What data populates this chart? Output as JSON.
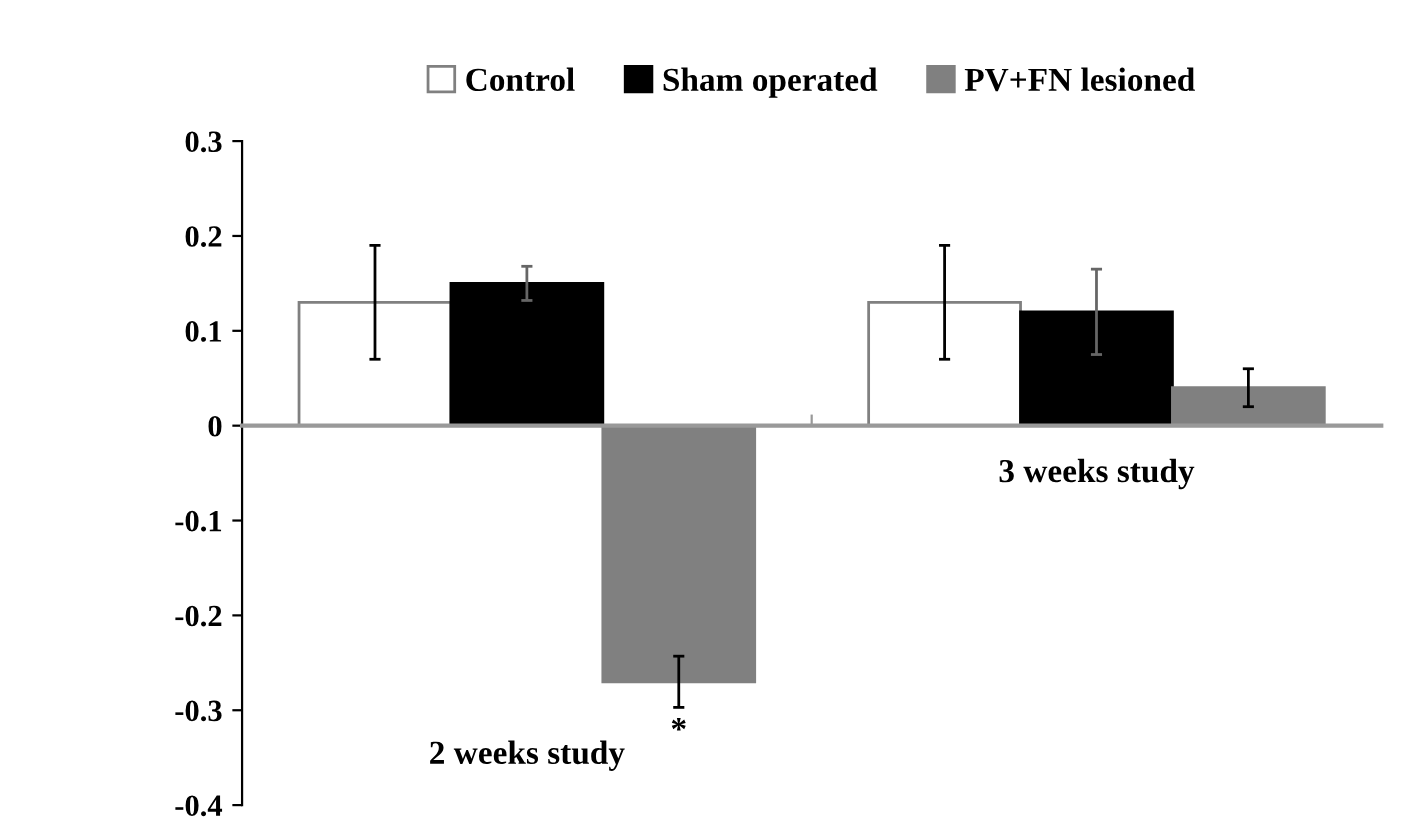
{
  "chart_data": {
    "type": "bar",
    "categories": [
      "2 weeks study",
      "3 weeks study"
    ],
    "series": [
      {
        "name": "Control",
        "color": "#ffffff",
        "values": [
          0.13,
          0.13
        ],
        "errors": [
          0.06,
          0.06
        ]
      },
      {
        "name": "Sham operated",
        "color": "#000000",
        "values": [
          0.15,
          0.12
        ],
        "errors": [
          0.018,
          0.045
        ]
      },
      {
        "name": "PV+FN lesioned",
        "color": "#808080",
        "values": [
          -0.27,
          0.04
        ],
        "errors": [
          0.027,
          0.02
        ]
      }
    ],
    "ylim": [
      -0.4,
      0.3
    ],
    "yticks": [
      -0.4,
      -0.3,
      -0.2,
      -0.1,
      0,
      0.1,
      0.2,
      0.3
    ],
    "annotations": [
      "*"
    ],
    "legend": "top"
  }
}
